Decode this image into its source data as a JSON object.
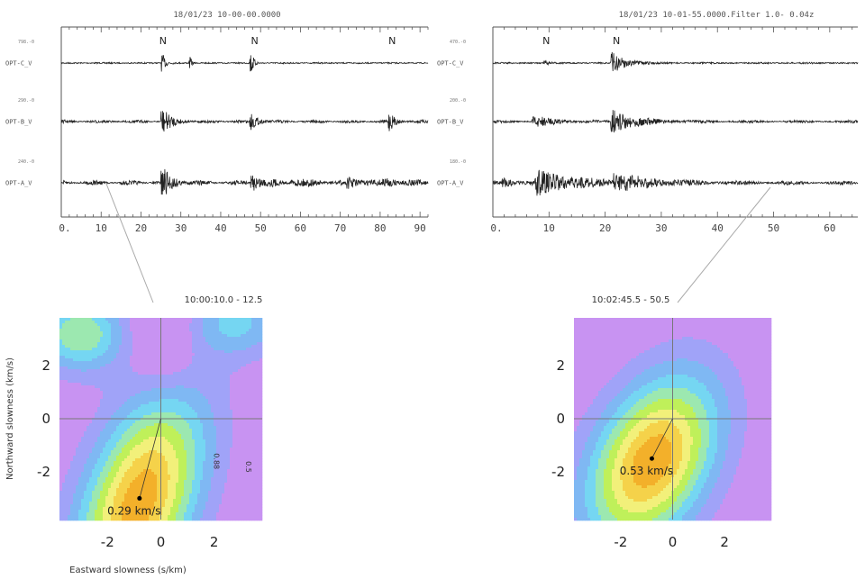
{
  "seismo_left": {
    "header": "18/01/23 10-00-00.0000",
    "x_ticks": [
      "0.",
      "10",
      "20",
      "30",
      "40",
      "50",
      "60",
      "70",
      "80",
      "90"
    ],
    "x_range": [
      0,
      92
    ],
    "phase_label": "N",
    "phase_times": [
      25.5,
      48.5,
      83
    ],
    "channels": [
      {
        "name": "OPT-C_V",
        "amp": "798.-0"
      },
      {
        "name": "OPT-B_V",
        "amp": "290.-0"
      },
      {
        "name": "OPT-A_V",
        "amp": "240.-0"
      }
    ]
  },
  "seismo_right": {
    "header": "18/01/23 10-01-55.0000.Filter 1.0- 0.04z",
    "x_ticks": [
      "0.",
      "10",
      "20",
      "30",
      "40",
      "50",
      "60"
    ],
    "x_range": [
      0,
      65
    ],
    "phase_label": "N",
    "phase_times": [
      9.5,
      22
    ],
    "channels": [
      {
        "name": "OPT-C_V",
        "amp": "470.-0"
      },
      {
        "name": "OPT-B_V",
        "amp": "200.-0"
      },
      {
        "name": "OPT-A_V",
        "amp": "180.-0"
      }
    ]
  },
  "chart_data": [
    {
      "type": "heatmap",
      "title": "10:00:10.0 - 12.5",
      "xlabel": "Eastward slowness (s/km)",
      "ylabel": "Northward slowness (km/s)",
      "x_ticks": [
        "-2",
        "0",
        "2"
      ],
      "y_ticks": [
        "2",
        "0",
        "-2"
      ],
      "xlim": [
        -3.8,
        3.8
      ],
      "ylim": [
        -3.8,
        3.8
      ],
      "peak": {
        "x": -0.8,
        "y": -3.0
      },
      "peak_label": "0.29 km/s",
      "contour_labels": [
        "0.88",
        "0.5"
      ]
    },
    {
      "type": "heatmap",
      "title": "10:02:45.5 - 50.5",
      "xlabel": "",
      "ylabel": "",
      "x_ticks": [
        "-2",
        "0",
        "2"
      ],
      "y_ticks": [
        "2",
        "0",
        "-2"
      ],
      "xlim": [
        -3.8,
        3.8
      ],
      "ylim": [
        -3.8,
        3.8
      ],
      "peak": {
        "x": -0.8,
        "y": -1.5
      },
      "peak_label": "0.53 km/s",
      "contour_labels": []
    }
  ],
  "colors": {
    "level_colors": [
      "#c893f2",
      "#a0a3f8",
      "#7fb8f3",
      "#75d6f2",
      "#9ce8b0",
      "#bff05a",
      "#f2f07a",
      "#f5d24a",
      "#f3b02a"
    ],
    "trace": "#222222",
    "peak_marker": "#000000"
  }
}
